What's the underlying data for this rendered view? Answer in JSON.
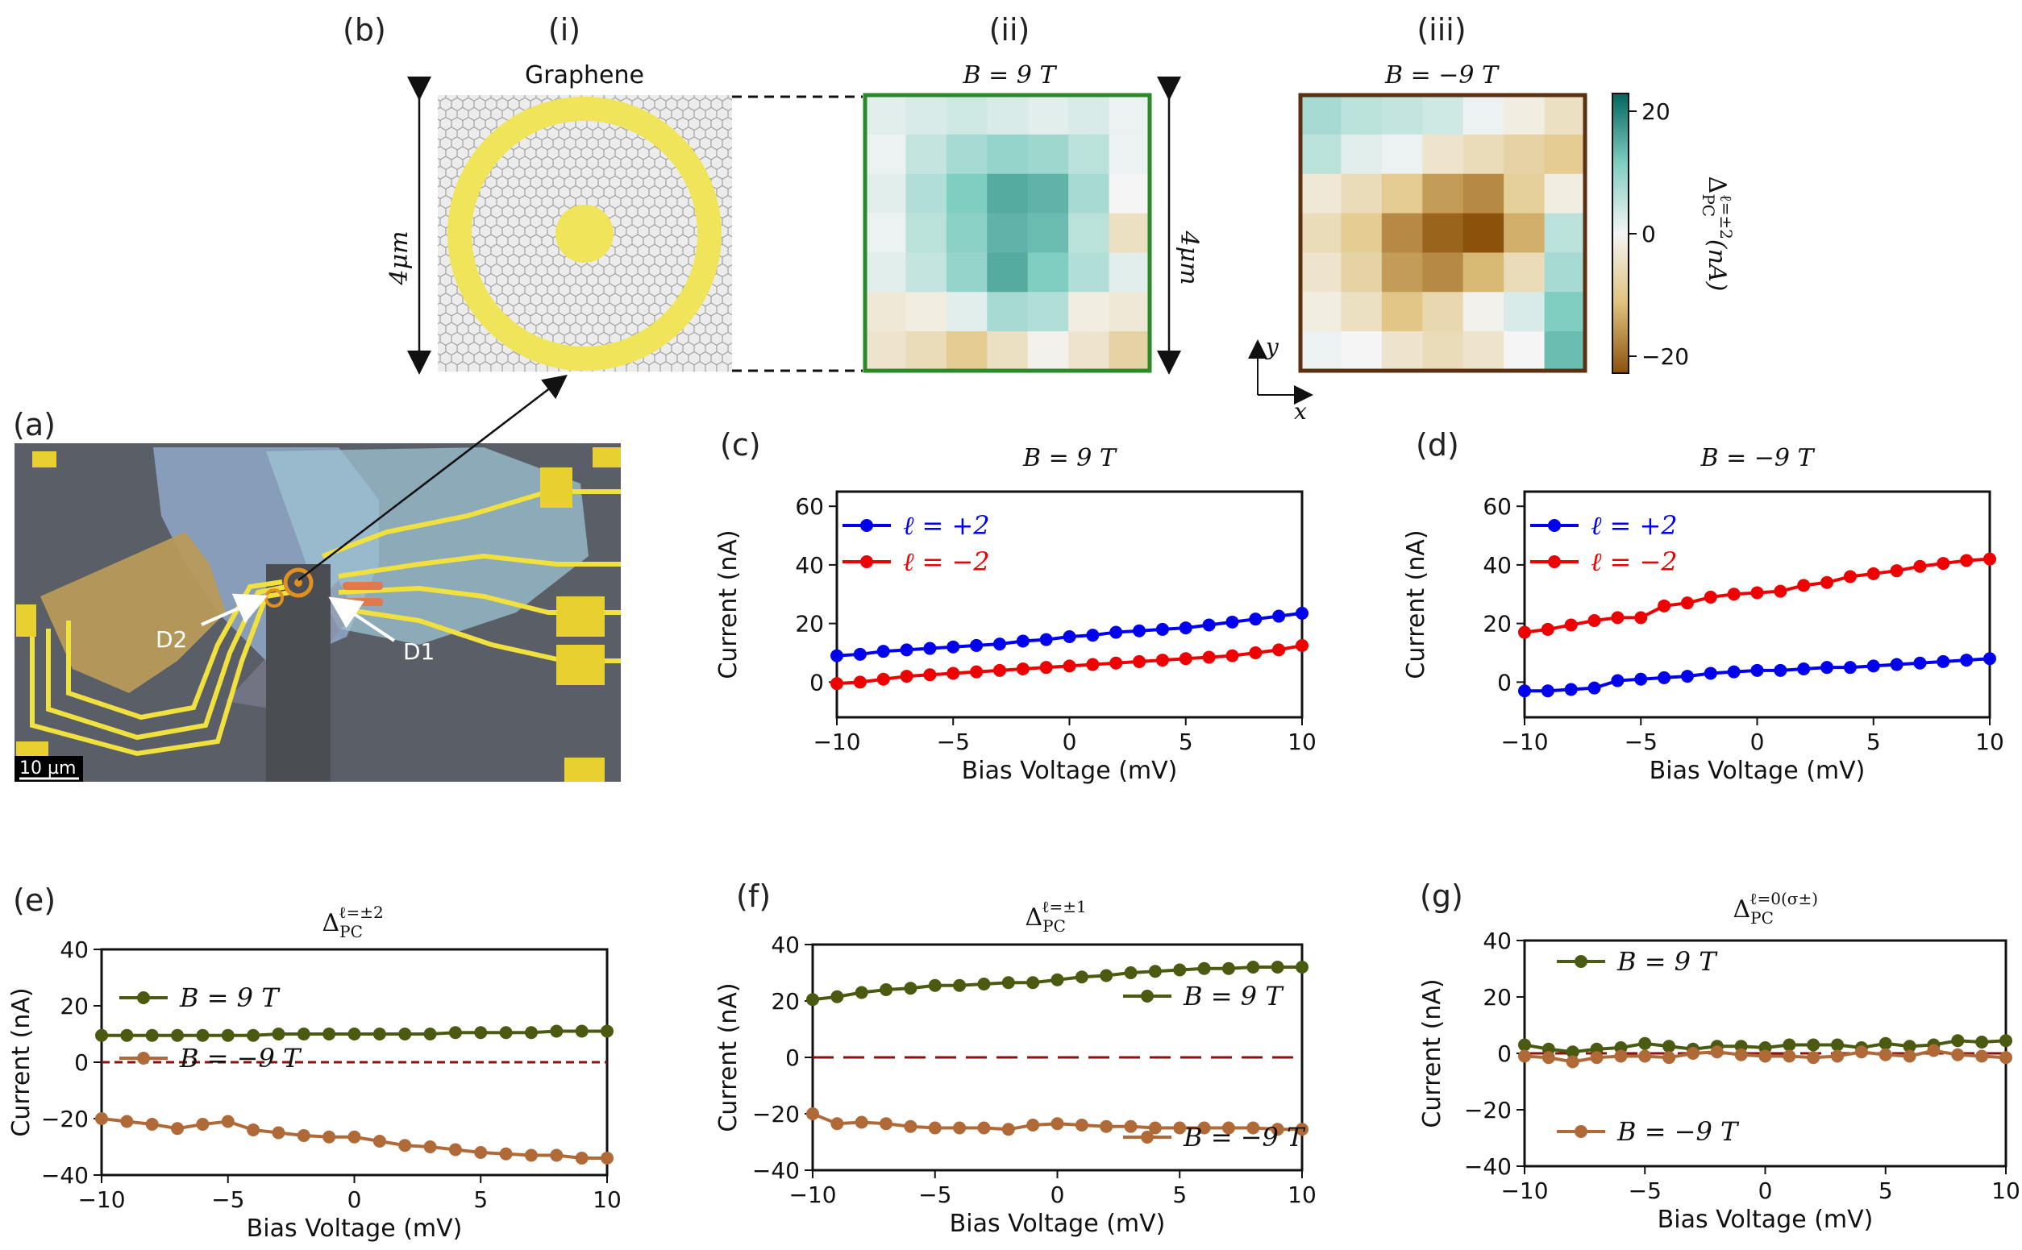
{
  "panels": {
    "a": {
      "label": "(a)",
      "scalebar": "10 µm",
      "detector1": "D1",
      "detector2": "D2"
    },
    "b": {
      "label": "(b)",
      "i": {
        "label": "(i)",
        "title": "Graphene",
        "size": "4μm"
      },
      "ii": {
        "label": "(ii)",
        "title": "B = 9 T",
        "size": "4μm"
      },
      "iii": {
        "label": "(iii)",
        "title": "B = −9 T",
        "xaxis": "x",
        "yaxis": "y"
      },
      "colorbar": {
        "ticks": [
          "20",
          "0",
          "−20"
        ],
        "label": "ΔPCℓ=±2 (nA)",
        "label_main": "Δ",
        "label_sub": "PC",
        "label_sup": "ℓ=±2",
        "label_unit": "(nA)"
      }
    }
  },
  "colors": {
    "blue": "#0000ee",
    "red": "#ee0000",
    "olive": "#4a5a10",
    "brown": "#b06a38",
    "dashed": "#8b1010",
    "frame_ii": "#2a8a2a",
    "frame_iii": "#5a3010"
  },
  "heatmaps": {
    "ii": [
      [
        2,
        3,
        4,
        3,
        2,
        3,
        1
      ],
      [
        1,
        5,
        8,
        10,
        9,
        6,
        1
      ],
      [
        2,
        7,
        12,
        16,
        15,
        8,
        0
      ],
      [
        1,
        6,
        11,
        15,
        14,
        6,
        -5
      ],
      [
        2,
        5,
        10,
        16,
        12,
        7,
        2
      ],
      [
        -3,
        -2,
        2,
        8,
        7,
        -2,
        -3
      ],
      [
        -4,
        -6,
        -10,
        -5,
        -1,
        -4,
        -8
      ]
    ],
    "iii": [
      [
        8,
        6,
        5,
        4,
        1,
        -2,
        -5
      ],
      [
        6,
        2,
        1,
        -4,
        -6,
        -8,
        -10
      ],
      [
        -3,
        -6,
        -10,
        -16,
        -18,
        -9,
        -2
      ],
      [
        -6,
        -10,
        -18,
        -22,
        -24,
        -14,
        6
      ],
      [
        -4,
        -8,
        -16,
        -18,
        -13,
        -6,
        8
      ],
      [
        -2,
        -5,
        -11,
        -7,
        -1,
        3,
        12
      ],
      [
        1,
        0,
        -4,
        -6,
        -4,
        0,
        14
      ]
    ]
  },
  "charts": {
    "c": {
      "label": "(c)",
      "title": "B = 9 T"
    },
    "d": {
      "label": "(d)",
      "title": "B = −9 T"
    },
    "e": {
      "label": "(e)",
      "title_main": "Δ",
      "title_sub": "PC",
      "title_sup": "ℓ=±2"
    },
    "f": {
      "label": "(f)",
      "title_main": "Δ",
      "title_sub": "PC",
      "title_sup": "ℓ=±1"
    },
    "g": {
      "label": "(g)",
      "title_main": "Δ",
      "title_sub": "PC",
      "title_sup": "ℓ=0(σ±)"
    }
  },
  "chart_data": [
    {
      "id": "c",
      "type": "line",
      "title": "B = 9 T",
      "xlabel": "Bias Voltage (mV)",
      "ylabel": "Current (nA)",
      "xlim": [
        -10,
        10
      ],
      "ylim": [
        -12,
        65
      ],
      "xticks": [
        -10,
        -5,
        0,
        5,
        10
      ],
      "yticks": [
        0,
        20,
        40,
        60
      ],
      "x": [
        -10,
        -9,
        -8,
        -7,
        -6,
        -5,
        -4,
        -3,
        -2,
        -1,
        0,
        1,
        2,
        3,
        4,
        5,
        6,
        7,
        8,
        9,
        10
      ],
      "series": [
        {
          "name": "ℓ = +2",
          "color": "#0000ee",
          "values": [
            9,
            9.5,
            10.5,
            11,
            11.5,
            12,
            12.5,
            13,
            14,
            14.5,
            15.5,
            16,
            17,
            17.5,
            18,
            18.5,
            19.5,
            20.5,
            21.5,
            22.5,
            23.5
          ]
        },
        {
          "name": "ℓ = −2",
          "color": "#ee0000",
          "values": [
            -0.5,
            0,
            1,
            2,
            2.5,
            3,
            3.5,
            4,
            4.5,
            5,
            5.5,
            6,
            6.5,
            7,
            7.5,
            8,
            8.5,
            9,
            10,
            11,
            12.5
          ]
        }
      ]
    },
    {
      "id": "d",
      "type": "line",
      "title": "B = −9 T",
      "xlabel": "Bias Voltage (mV)",
      "ylabel": "Current (nA)",
      "xlim": [
        -10,
        10
      ],
      "ylim": [
        -12,
        65
      ],
      "xticks": [
        -10,
        -5,
        0,
        5,
        10
      ],
      "yticks": [
        0,
        20,
        40,
        60
      ],
      "x": [
        -10,
        -9,
        -8,
        -7,
        -6,
        -5,
        -4,
        -3,
        -2,
        -1,
        0,
        1,
        2,
        3,
        4,
        5,
        6,
        7,
        8,
        9,
        10
      ],
      "series": [
        {
          "name": "ℓ = +2",
          "color": "#0000ee",
          "values": [
            -3,
            -3,
            -2.5,
            -2,
            0.5,
            1,
            1.5,
            2,
            3,
            3.5,
            4,
            4,
            4.5,
            5,
            5,
            5.5,
            6,
            6.5,
            7,
            7.5,
            8
          ]
        },
        {
          "name": "ℓ = −2",
          "color": "#ee0000",
          "values": [
            17,
            18,
            19.5,
            21,
            22,
            22,
            26,
            27,
            29,
            30,
            30.5,
            31,
            33,
            34,
            36,
            37,
            38,
            39.5,
            40.5,
            41.5,
            42
          ]
        }
      ]
    },
    {
      "id": "e",
      "type": "line",
      "title": "ΔPC ℓ=±2",
      "xlabel": "Bias Voltage (mV)",
      "ylabel": "Current (nA)",
      "xlim": [
        -10,
        10
      ],
      "ylim": [
        -40,
        40
      ],
      "xticks": [
        -10,
        -5,
        0,
        5,
        10
      ],
      "yticks": [
        -40,
        -20,
        0,
        20,
        40
      ],
      "x": [
        -10,
        -9,
        -8,
        -7,
        -6,
        -5,
        -4,
        -3,
        -2,
        -1,
        0,
        1,
        2,
        3,
        4,
        5,
        6,
        7,
        8,
        9,
        10
      ],
      "series": [
        {
          "name": "B = 9 T",
          "color": "#4a5a10",
          "values": [
            9.5,
            9.5,
            9.5,
            9.5,
            9.5,
            9.5,
            9.5,
            10,
            10,
            10,
            10,
            10,
            10,
            10,
            10.5,
            10.5,
            10.5,
            10.5,
            11,
            11,
            11
          ]
        },
        {
          "name": "B = −9 T",
          "color": "#b06a38",
          "values": [
            -20,
            -21,
            -22,
            -23.5,
            -22,
            -21,
            -24,
            -25,
            -26,
            -26.5,
            -26.5,
            -28,
            -29.5,
            -30,
            -31,
            -32,
            -32.5,
            -33,
            -33,
            -34,
            -34
          ]
        }
      ],
      "hline": 0
    },
    {
      "id": "f",
      "type": "line",
      "title": "ΔPC ℓ=±1",
      "xlabel": "Bias Voltage (mV)",
      "ylabel": "Current (nA)",
      "xlim": [
        -10,
        10
      ],
      "ylim": [
        -40,
        40
      ],
      "xticks": [
        -10,
        -5,
        0,
        5,
        10
      ],
      "yticks": [
        -40,
        -20,
        0,
        20,
        40
      ],
      "x": [
        -10,
        -9,
        -8,
        -7,
        -6,
        -5,
        -4,
        -3,
        -2,
        -1,
        0,
        1,
        2,
        3,
        4,
        5,
        6,
        7,
        8,
        9,
        10
      ],
      "series": [
        {
          "name": "B = 9 T",
          "color": "#4a5a10",
          "values": [
            20.5,
            21.5,
            23,
            24,
            24.5,
            25.5,
            25.5,
            26,
            26.5,
            26.5,
            27.5,
            28.5,
            29,
            30,
            30.5,
            31,
            31.5,
            31.5,
            32,
            32,
            32
          ]
        },
        {
          "name": "B = −9 T",
          "color": "#b06a38",
          "values": [
            -20,
            -23.5,
            -23,
            -23.5,
            -24.5,
            -25,
            -25,
            -25,
            -25.5,
            -24,
            -23.5,
            -24,
            -24.5,
            -24.5,
            -25,
            -25,
            -25,
            -25,
            -25,
            -25.5,
            -25.5
          ]
        }
      ],
      "hline": 0
    },
    {
      "id": "g",
      "type": "line",
      "title": "ΔPC ℓ=0(σ±)",
      "xlabel": "Bias Voltage (mV)",
      "ylabel": "Current (nA)",
      "xlim": [
        -10,
        10
      ],
      "ylim": [
        -40,
        40
      ],
      "xticks": [
        -10,
        -5,
        0,
        5,
        10
      ],
      "yticks": [
        -40,
        -20,
        0,
        20,
        40
      ],
      "x": [
        -10,
        -9,
        -8,
        -7,
        -6,
        -5,
        -4,
        -3,
        -2,
        -1,
        0,
        1,
        2,
        3,
        4,
        5,
        6,
        7,
        8,
        9,
        10
      ],
      "series": [
        {
          "name": "B = 9 T",
          "color": "#4a5a10",
          "values": [
            3,
            1.5,
            0.5,
            1.5,
            2,
            3.5,
            2.5,
            1.5,
            2.5,
            2.5,
            2,
            3,
            3,
            3,
            2,
            3.5,
            2.5,
            3,
            4.5,
            4,
            4.5
          ]
        },
        {
          "name": "B = −9 T",
          "color": "#b06a38",
          "values": [
            -1,
            -1.5,
            -3,
            -1.5,
            -1,
            -1,
            -1.5,
            0,
            0.5,
            -0.5,
            -1,
            -1,
            -1.5,
            -1,
            0.5,
            -0.5,
            -1,
            1,
            -0.5,
            -1,
            -1.5
          ]
        }
      ],
      "hline": 0
    }
  ]
}
